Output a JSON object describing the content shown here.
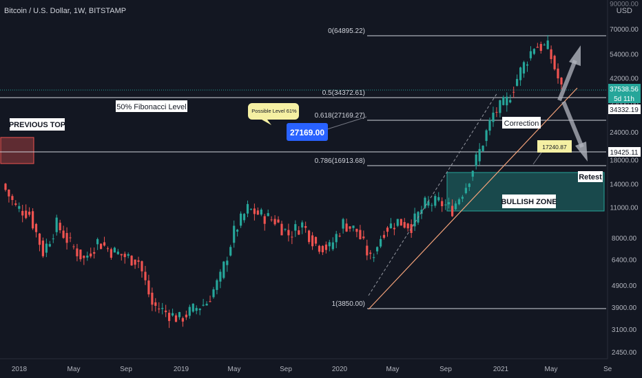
{
  "header": {
    "symbol_line": "Bitcoin / U.S. Dollar, 1W, BITSTAMP"
  },
  "axis": {
    "currency": "USD",
    "top_clip_label": "90000.00",
    "y_ticks": [
      "70000.00",
      "54000.00",
      "42000.00",
      "32000.00",
      "24000.00",
      "18000.00",
      "14000.00",
      "11000.00",
      "8000.00",
      "6400.00",
      "4900.00",
      "3900.00",
      "3100.00",
      "2450.00"
    ],
    "x_ticks": [
      "2018",
      "May",
      "Sep",
      "2019",
      "May",
      "Sep",
      "2020",
      "May",
      "Sep",
      "2021",
      "May",
      "Se"
    ]
  },
  "price_tags": {
    "last": "37538.56",
    "countdown": "5d 11h",
    "support": "34332.19",
    "prev_top": "19425.11"
  },
  "fib_labels": {
    "f0": "0(64895.22)",
    "f05": "0.5(34372.61)",
    "f0618": "0.618(27169.27)",
    "f0786": "0.786(16913.68)",
    "f1": "1(3850.00)"
  },
  "annotations": {
    "fib_level": "50% Fibonacci Level",
    "possible_level": "Possible Level 61%",
    "blue_price": "27169.00",
    "previous_top": "PREVIOUS TOP",
    "correction": "Correction",
    "retest_price": "17240.87",
    "retest": "Retest",
    "bullish_zone": "BULLISH ZONE"
  },
  "colors": {
    "background": "#131722",
    "up": "#26a69a",
    "down": "#ef5350",
    "fib_line": "#d1d4dc",
    "blue_badge": "#2962ff",
    "yellow_note": "#f5f0a3",
    "zone_fill": "#26a69a"
  },
  "chart_data": {
    "type": "candlestick",
    "title": "Bitcoin / U.S. Dollar, 1W, BITSTAMP",
    "y_scale": "log",
    "ylim": [
      2300,
      90000
    ],
    "x_range": [
      "2017-12",
      "2021-09"
    ],
    "fib_levels": [
      {
        "ratio": 0,
        "price": 64895.22
      },
      {
        "ratio": 0.5,
        "price": 34372.61
      },
      {
        "ratio": 0.618,
        "price": 27169.27
      },
      {
        "ratio": 0.786,
        "price": 16913.68
      },
      {
        "ratio": 1,
        "price": 3850.0
      }
    ],
    "last_price": 37538.56,
    "support_price": 34332.19,
    "previous_top_price": 19425.11,
    "bullish_zone": {
      "from": "2020-09",
      "to": "2021-06",
      "price_low": 10500,
      "price_high": 15500
    },
    "weekly_closes_approx": [
      {
        "period": "2017-12",
        "close": 14000
      },
      {
        "period": "2018-01",
        "close": 11000
      },
      {
        "period": "2018-02",
        "close": 10300
      },
      {
        "period": "2018-03",
        "close": 6900
      },
      {
        "period": "2018-04",
        "close": 9200
      },
      {
        "period": "2018-05",
        "close": 7500
      },
      {
        "period": "2018-06",
        "close": 6400
      },
      {
        "period": "2018-07",
        "close": 7700
      },
      {
        "period": "2018-08",
        "close": 7000
      },
      {
        "period": "2018-09",
        "close": 6600
      },
      {
        "period": "2018-10",
        "close": 6300
      },
      {
        "period": "2018-11",
        "close": 4000
      },
      {
        "period": "2018-12",
        "close": 3700
      },
      {
        "period": "2019-01",
        "close": 3450
      },
      {
        "period": "2019-02",
        "close": 3800
      },
      {
        "period": "2019-03",
        "close": 4100
      },
      {
        "period": "2019-04",
        "close": 5300
      },
      {
        "period": "2019-05",
        "close": 8500
      },
      {
        "period": "2019-06",
        "close": 10800
      },
      {
        "period": "2019-07",
        "close": 10100
      },
      {
        "period": "2019-08",
        "close": 9600
      },
      {
        "period": "2019-09",
        "close": 8300
      },
      {
        "period": "2019-10",
        "close": 9200
      },
      {
        "period": "2019-11",
        "close": 7500
      },
      {
        "period": "2019-12",
        "close": 7200
      },
      {
        "period": "2020-01",
        "close": 9300
      },
      {
        "period": "2020-02",
        "close": 8600
      },
      {
        "period": "2020-03",
        "close": 6400
      },
      {
        "period": "2020-04",
        "close": 8700
      },
      {
        "period": "2020-05",
        "close": 9500
      },
      {
        "period": "2020-06",
        "close": 9100
      },
      {
        "period": "2020-07",
        "close": 11300
      },
      {
        "period": "2020-08",
        "close": 11600
      },
      {
        "period": "2020-09",
        "close": 10800
      },
      {
        "period": "2020-10",
        "close": 13800
      },
      {
        "period": "2020-11",
        "close": 19700
      },
      {
        "period": "2020-12",
        "close": 29000
      },
      {
        "period": "2021-01",
        "close": 33100
      },
      {
        "period": "2021-02",
        "close": 45200
      },
      {
        "period": "2021-03",
        "close": 58800
      },
      {
        "period": "2021-04",
        "close": 57700
      },
      {
        "period": "2021-05",
        "close": 37538.56
      }
    ]
  }
}
